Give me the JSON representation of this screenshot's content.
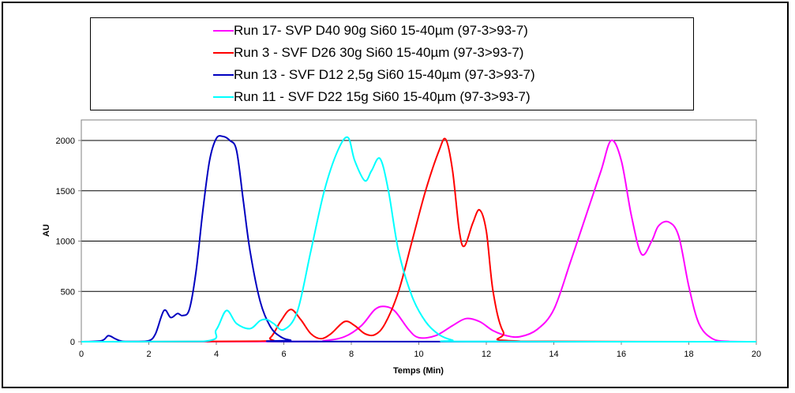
{
  "chart_data": {
    "type": "line",
    "xlabel": "Temps (Min)",
    "ylabel": "AU",
    "xlim": [
      0,
      20
    ],
    "ylim": [
      0,
      2000
    ],
    "x_ticks": [
      0,
      2,
      4,
      6,
      8,
      10,
      12,
      14,
      16,
      18,
      20
    ],
    "y_ticks": [
      0,
      500,
      1000,
      1500,
      2000
    ],
    "grid": "horizontal",
    "legend_position": "top",
    "series": [
      {
        "name": "Run 17- SVP D40 90g Si60 15-40µm (97-3>93-7)",
        "color": "#ff00ff",
        "x": [
          0,
          6.5,
          7.2,
          7.8,
          8.3,
          8.7,
          9.0,
          9.3,
          9.7,
          10.0,
          10.5,
          11.0,
          11.4,
          11.8,
          12.2,
          12.6,
          13.0,
          13.5,
          14.0,
          14.5,
          15.0,
          15.4,
          15.7,
          16.0,
          16.3,
          16.6,
          16.9,
          17.1,
          17.4,
          17.7,
          18.0,
          18.3,
          18.7,
          19.2,
          20
        ],
        "y": [
          0,
          2,
          10,
          50,
          160,
          320,
          350,
          300,
          120,
          40,
          60,
          160,
          230,
          200,
          110,
          60,
          50,
          120,
          320,
          800,
          1300,
          1700,
          2000,
          1800,
          1250,
          870,
          1000,
          1150,
          1190,
          1050,
          550,
          180,
          30,
          3,
          0
        ]
      },
      {
        "name": "Run 3 - SVF D26 30g Si60 15-40µm (97-3>93-7)",
        "color": "#ff0000",
        "x": [
          0,
          5.2,
          5.6,
          5.9,
          6.2,
          6.5,
          6.8,
          7.1,
          7.4,
          7.8,
          8.1,
          8.4,
          8.7,
          9.0,
          9.4,
          9.8,
          10.2,
          10.6,
          10.8,
          11.0,
          11.2,
          11.35,
          11.6,
          11.8,
          12.0,
          12.2,
          12.5,
          13.0,
          20
        ],
        "y": [
          0,
          5,
          40,
          200,
          320,
          220,
          80,
          30,
          80,
          200,
          160,
          80,
          70,
          180,
          500,
          1000,
          1500,
          1900,
          2010,
          1700,
          1100,
          950,
          1180,
          1310,
          1100,
          500,
          100,
          5,
          0
        ]
      },
      {
        "name": "Run 13 - SVF D12 2,5g Si60 15-40µm (97-3>93-7)",
        "color": "#0000c0",
        "x": [
          0,
          0.6,
          0.8,
          1.0,
          1.2,
          1.6,
          2.0,
          2.2,
          2.45,
          2.65,
          2.85,
          3.0,
          3.2,
          3.4,
          3.6,
          3.8,
          4.0,
          4.2,
          4.4,
          4.6,
          4.8,
          5.0,
          5.3,
          5.6,
          5.9,
          6.2,
          6.6,
          20
        ],
        "y": [
          0,
          10,
          60,
          30,
          5,
          2,
          10,
          80,
          310,
          240,
          280,
          260,
          320,
          700,
          1300,
          1800,
          2020,
          2040,
          2000,
          1900,
          1400,
          900,
          400,
          150,
          50,
          15,
          2,
          0
        ]
      },
      {
        "name": "Run 11 - SVF D22 15g Si60 15-40µm (97-3>93-7)",
        "color": "#00ffff",
        "x": [
          0,
          3.6,
          4.0,
          4.3,
          4.6,
          5.0,
          5.3,
          5.5,
          5.7,
          6.0,
          6.4,
          6.8,
          7.2,
          7.6,
          7.9,
          8.1,
          8.4,
          8.6,
          8.85,
          9.1,
          9.4,
          9.8,
          10.2,
          10.6,
          11.0,
          11.4,
          20
        ],
        "y": [
          0,
          3,
          120,
          310,
          180,
          130,
          210,
          220,
          180,
          120,
          300,
          900,
          1500,
          1900,
          2030,
          1800,
          1600,
          1700,
          1820,
          1500,
          900,
          450,
          200,
          70,
          15,
          2,
          0
        ]
      }
    ]
  }
}
